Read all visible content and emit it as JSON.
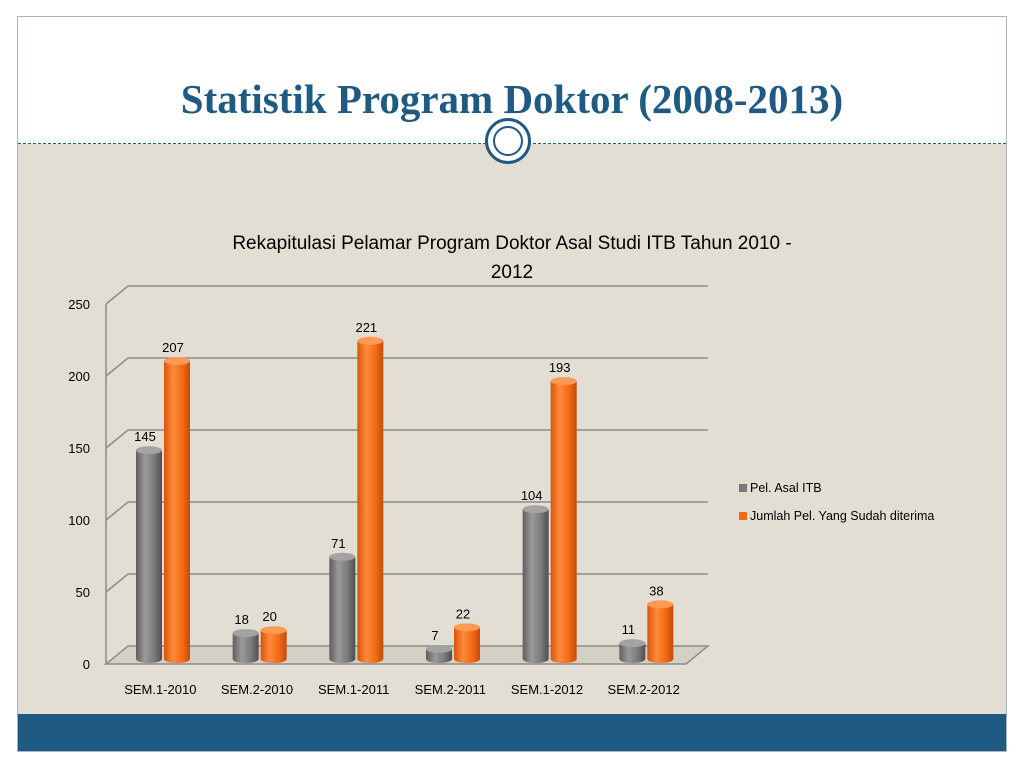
{
  "slide": {
    "title": "Statistik Program Doktor (2008-2013)"
  },
  "chart_data": {
    "type": "bar",
    "title_lines": [
      "Rekapitulasi Pelamar  Program Doktor Asal Studi ITB Tahun 2010 -",
      "2012"
    ],
    "categories": [
      "SEM.1-2010",
      "SEM.2-2010",
      "SEM.1-2011",
      "SEM.2-2011",
      "SEM.1-2012",
      "SEM.2-2012"
    ],
    "series": [
      {
        "name": "Pel. Asal ITB",
        "values": [
          145,
          18,
          71,
          7,
          104,
          11
        ],
        "color": "#7a7a7a"
      },
      {
        "name": "Jumlah Pel. Yang Sudah diterima",
        "values": [
          207,
          20,
          221,
          22,
          193,
          38
        ],
        "color": "#f26b16"
      }
    ],
    "ylim": [
      0,
      250
    ],
    "yticks": [
      0,
      50,
      100,
      150,
      200,
      250
    ],
    "grid": true,
    "legend": "right",
    "style": "3d-cylinder"
  }
}
